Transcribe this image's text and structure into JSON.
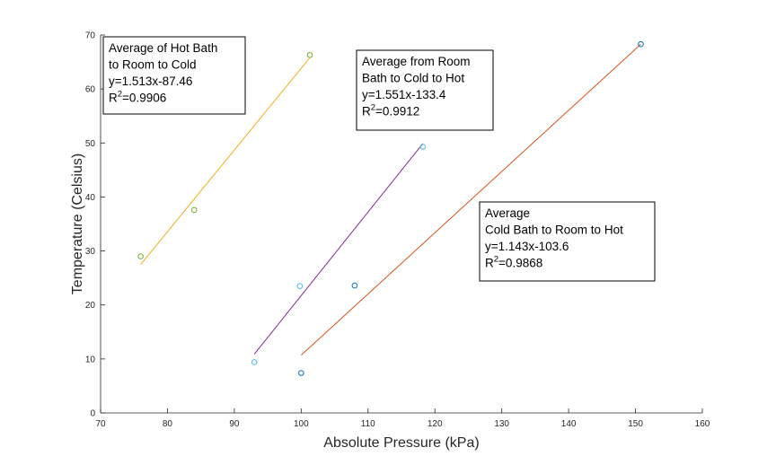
{
  "chart_data": {
    "type": "scatter",
    "xlabel": "Absolute Pressure (kPa)",
    "ylabel": "Temperature (Celsius)",
    "xlim": [
      70,
      160
    ],
    "ylim": [
      0,
      70
    ],
    "xticks": [
      70,
      80,
      90,
      100,
      110,
      120,
      130,
      140,
      150,
      160
    ],
    "yticks": [
      0,
      10,
      20,
      30,
      40,
      50,
      60,
      70
    ],
    "grid": false,
    "series": [
      {
        "color": "#77ac30",
        "points": [
          [
            76.0,
            29.0
          ],
          [
            84.0,
            37.6
          ],
          [
            101.3,
            66.3
          ]
        ],
        "fit": {
          "x": [
            76.0,
            101.3
          ],
          "y": [
            27.5,
            65.8
          ],
          "color": "#edb120"
        }
      },
      {
        "color": "#4dbeee",
        "points": [
          [
            93.0,
            9.4
          ],
          [
            99.8,
            23.5
          ],
          [
            118.2,
            49.3
          ]
        ],
        "fit": {
          "x": [
            93.0,
            118.2
          ],
          "y": [
            10.9,
            49.9
          ],
          "color": "#7e2f8e"
        }
      },
      {
        "color": "#0072bd",
        "points": [
          [
            100.0,
            7.4
          ],
          [
            108.0,
            23.6
          ],
          [
            150.8,
            68.3
          ]
        ],
        "fit": {
          "x": [
            100.0,
            150.8
          ],
          "y": [
            10.7,
            68.3
          ],
          "color": "#d95319"
        }
      }
    ],
    "annotations": [
      {
        "lines": [
          "Average of Hot Bath",
          " to Room to Cold",
          "y=1.513x-87.46",
          "R2=0.9906"
        ]
      },
      {
        "lines": [
          "Average from Room",
          "Bath to Cold to Hot",
          "y=1.551x-133.4",
          "R2=0.9912"
        ]
      },
      {
        "lines": [
          "Average",
          "Cold Bath to Room to Hot",
          "y=1.143x-103.6",
          "R2=0.9868"
        ]
      }
    ]
  }
}
